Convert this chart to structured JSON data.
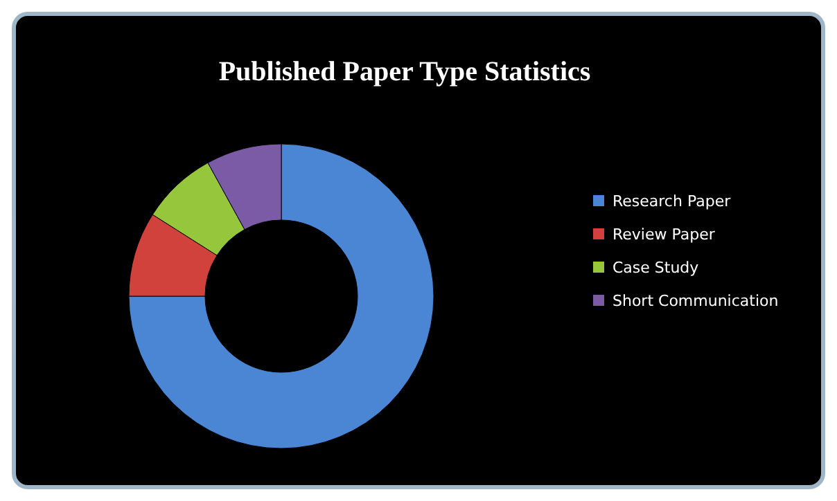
{
  "chart_data": {
    "type": "donut",
    "title": "Published Paper Type Statistics",
    "categories": [
      "Research Paper",
      "Review Paper",
      "Case Study",
      "Short Communication"
    ],
    "values": [
      75,
      9,
      8,
      8
    ],
    "colors": [
      "#4a86d4",
      "#d0423b",
      "#96c63c",
      "#7b5aa6"
    ],
    "legend": "right"
  }
}
